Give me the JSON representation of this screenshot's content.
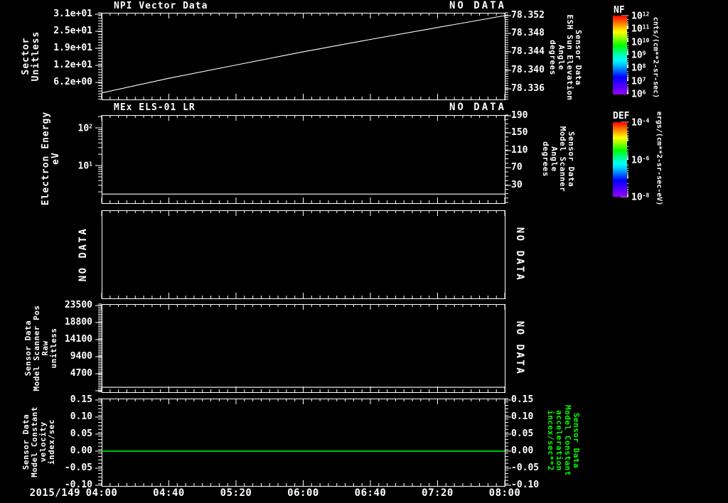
{
  "palette": {
    "background": "#000000",
    "foreground": "#ffffff",
    "accent_green": "#00ff00"
  },
  "x_axis": {
    "date_label": "2015/149",
    "tick_labels": [
      "04:00",
      "04:40",
      "05:20",
      "06:00",
      "06:40",
      "07:20",
      "08:00"
    ]
  },
  "panels": [
    {
      "title": "NPI Vector Data",
      "status": "NO DATA",
      "left_axis": {
        "label_text": "Sector\nUnitless",
        "ticks": [
          "3.1e+01",
          "2.5e+01",
          "1.9e+01",
          "1.2e+01",
          "6.2e+00"
        ]
      },
      "right_axis": {
        "label_text": "Sensor Data\nESH Sun Elevation\nAngle\ndegrees",
        "ticks": [
          "78.352",
          "78.348",
          "78.344",
          "78.340",
          "78.336"
        ]
      }
    },
    {
      "title": "MEx ELS-01 LR",
      "status": "NO DATA",
      "left_axis": {
        "label_text": "Electron Energy\neV",
        "ticks": [
          "10^2",
          "10^1"
        ]
      },
      "right_axis": {
        "label_text": "Sensor Data\nModel Scanner\nAngle\ndegrees",
        "ticks": [
          "190",
          "150",
          "110",
          "70",
          "30"
        ]
      }
    },
    {
      "left_no_data": "NO DATA",
      "right_no_data": "NO DATA"
    },
    {
      "left_axis": {
        "label_text": "Sensor Data\nModel Scanner Pos\nRaw\nunitless",
        "ticks": [
          "23500",
          "18800",
          "14100",
          "9400",
          "4700"
        ]
      },
      "right_no_data": "NO DATA"
    },
    {
      "left_axis": {
        "label_text": "Sensor Data\nModel Constant\nvelocity\nindex/sec",
        "ticks": [
          "0.15",
          "0.10",
          "0.05",
          "0.00",
          "-0.05",
          "-0.10"
        ]
      },
      "right_axis": {
        "label_text": "Sensor Data\nModel Constant\nacceleration\nincex/sec**2",
        "ticks": [
          "0.15",
          "0.10",
          "0.05",
          "0.00",
          "-0.05",
          "-0.10"
        ]
      }
    }
  ],
  "colorbars": [
    {
      "title": "NF",
      "ticks": [
        "10^12",
        "10^11",
        "10^10",
        "10^9",
        "10^8",
        "10^7",
        "10^6"
      ],
      "units": "cnts/(cm**2-sr-sec)"
    },
    {
      "title": "DEF",
      "ticks": [
        "10^-4",
        "10^-6",
        "10^-8"
      ],
      "units": "ergs/(cm**2-sr-sec-eV)"
    }
  ],
  "chart_data": [
    {
      "type": "line",
      "panel": 1,
      "title": "NPI Vector Data",
      "status": "NO DATA",
      "x": [
        "04:00",
        "04:40",
        "05:20",
        "06:00",
        "06:40",
        "07:20",
        "08:00"
      ],
      "left_axis": {
        "label": "Sector Unitless",
        "ticks": [
          31,
          25,
          19,
          12,
          6.2
        ],
        "ylim": [
          0,
          31.5
        ]
      },
      "right_axis": {
        "label": "Sensor Data ESH Sun Elevation Angle degrees",
        "ticks": [
          78.352,
          78.348,
          78.344,
          78.34,
          78.336
        ],
        "ylim": [
          78.3335,
          78.3525
        ]
      },
      "series": [
        {
          "name": "ESH Sun Elevation Angle",
          "axis": "right",
          "color": "#ffffff",
          "values": [
            78.3351,
            78.3383,
            78.3412,
            78.3441,
            78.3468,
            78.3494,
            78.352
          ]
        }
      ]
    },
    {
      "type": "line",
      "panel": 2,
      "title": "MEx ELS-01 LR",
      "status": "NO DATA",
      "x": [
        "04:00",
        "04:40",
        "05:20",
        "06:00",
        "06:40",
        "07:20",
        "08:00"
      ],
      "left_axis": {
        "label": "Electron Energy eV",
        "scale": "log",
        "ticks": [
          100,
          10
        ],
        "ylim": [
          1,
          200
        ]
      },
      "right_axis": {
        "label": "Sensor Data Model Scanner Angle degrees",
        "ticks": [
          190,
          150,
          110,
          70,
          30
        ],
        "ylim": [
          -10,
          195
        ]
      },
      "series": [
        {
          "name": "Electron Energy lower bound",
          "axis": "left",
          "color": "#ffffff",
          "values": [
            1.6,
            1.6,
            1.6,
            1.6,
            1.6,
            1.6,
            1.6
          ]
        }
      ]
    },
    {
      "type": "empty",
      "panel": 3,
      "status": "NO DATA"
    },
    {
      "type": "line",
      "panel": 4,
      "status": "NO DATA",
      "x": [
        "04:00",
        "04:40",
        "05:20",
        "06:00",
        "06:40",
        "07:20",
        "08:00"
      ],
      "left_axis": {
        "label": "Sensor Data Model Scanner Pos Raw unitless",
        "ticks": [
          23500,
          18800,
          14100,
          9400,
          4700
        ],
        "ylim": [
          0,
          24200
        ]
      },
      "series": [
        {
          "name": "Scanner Pos Raw",
          "axis": "left",
          "color": "#ffffff",
          "values": [
            1000,
            1000,
            1000,
            1000,
            1000,
            1000,
            1000
          ]
        }
      ]
    },
    {
      "type": "line",
      "panel": 5,
      "x": [
        "04:00",
        "04:40",
        "05:20",
        "06:00",
        "06:40",
        "07:20",
        "08:00"
      ],
      "left_axis": {
        "label": "Sensor Data Model Constant velocity index/sec",
        "ticks": [
          0.15,
          0.1,
          0.05,
          0,
          -0.05,
          -0.1
        ],
        "ylim": [
          -0.1,
          0.15
        ]
      },
      "right_axis": {
        "label": "Sensor Data Model Constant acceleration incex/sec**2",
        "ticks": [
          0.15,
          0.1,
          0.05,
          0,
          -0.05,
          -0.1
        ],
        "ylim": [
          -0.1,
          0.15
        ]
      },
      "series": [
        {
          "name": "velocity",
          "axis": "left",
          "color": "#00ff00",
          "values": [
            0,
            0,
            0,
            0,
            0,
            0,
            0
          ]
        }
      ]
    }
  ]
}
